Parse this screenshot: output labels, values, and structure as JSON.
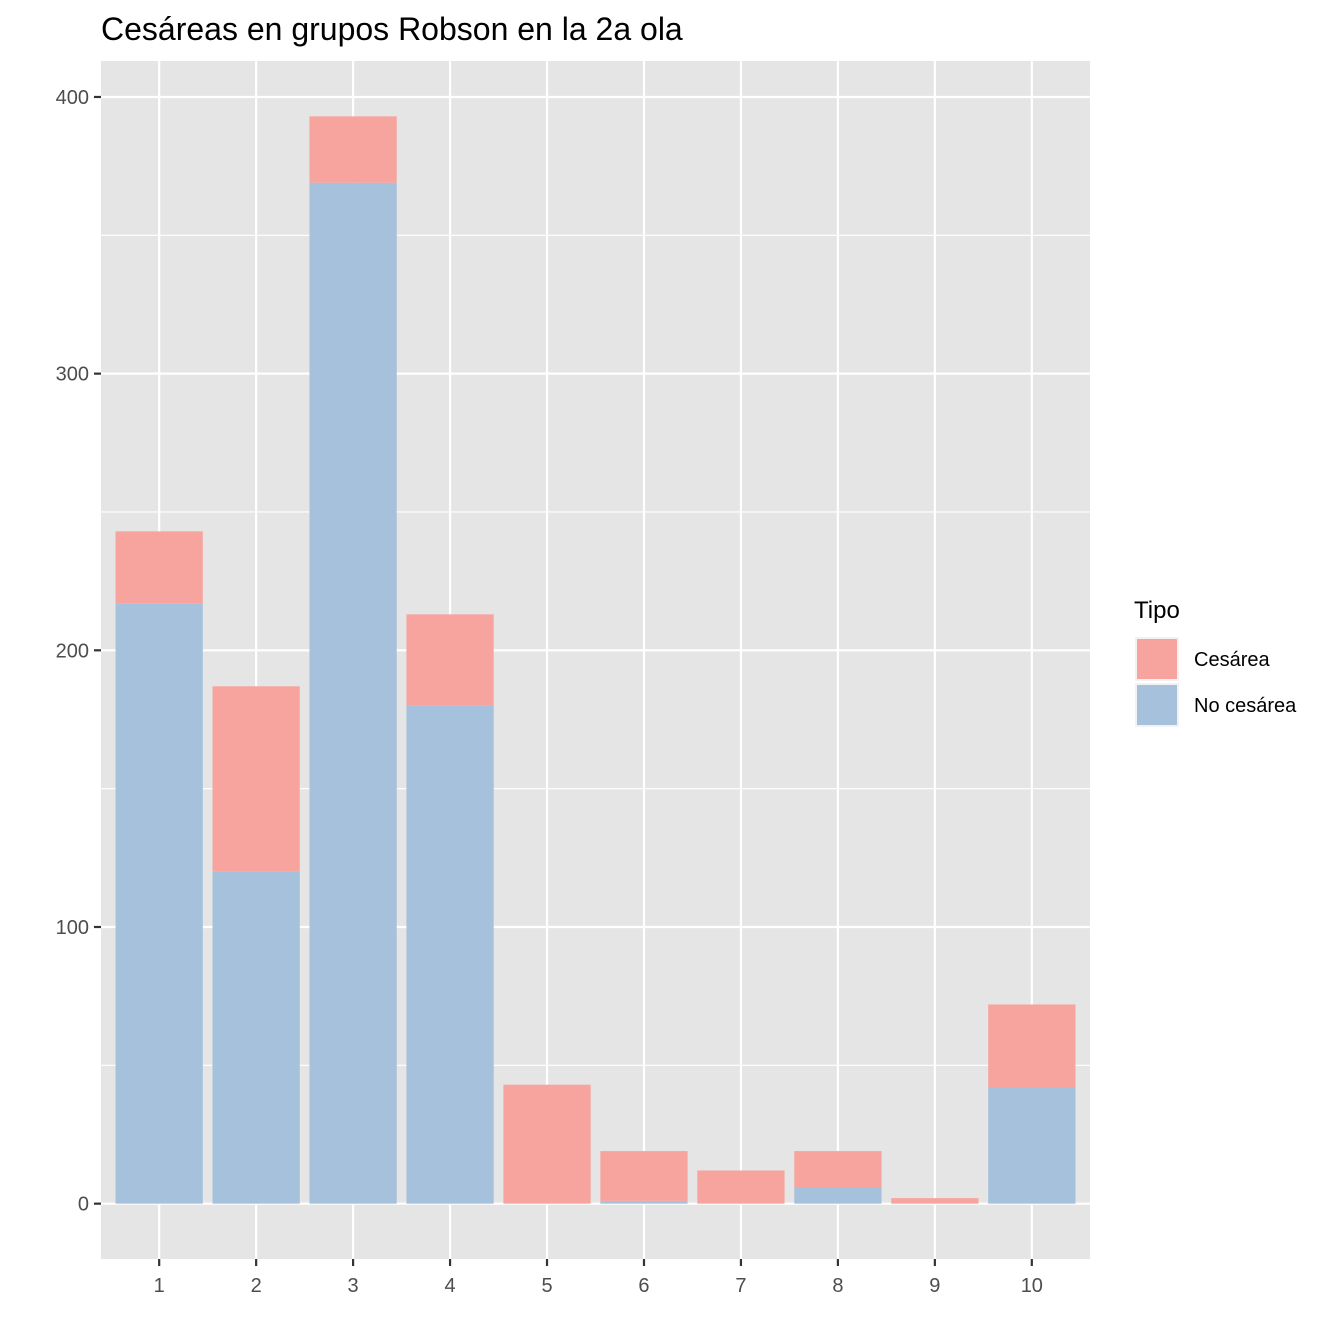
{
  "chart_data": {
    "type": "bar",
    "stacked": true,
    "title": "Cesáreas en grupos Robson en la 2a ola",
    "xlabel": "",
    "ylabel": "",
    "categories": [
      "1",
      "2",
      "3",
      "4",
      "5",
      "6",
      "7",
      "8",
      "9",
      "10"
    ],
    "series": [
      {
        "name": "No cesárea",
        "color": "#a6c1dc",
        "values": [
          217,
          120,
          369,
          180,
          0,
          1,
          0,
          6,
          0,
          42
        ]
      },
      {
        "name": "Cesárea",
        "color": "#f7a49f",
        "values": [
          26,
          67,
          24,
          33,
          43,
          18,
          12,
          13,
          2,
          30
        ]
      }
    ],
    "ylim": [
      -20,
      413
    ],
    "yticks": [
      0,
      100,
      200,
      300,
      400
    ],
    "grid": true,
    "panel_color": "#e5e5e5",
    "legend": {
      "title": "Tipo",
      "position": "right",
      "entries": [
        {
          "label": "Cesárea",
          "color": "#f7a49f"
        },
        {
          "label": "No cesárea",
          "color": "#a6c1dc"
        }
      ]
    }
  }
}
